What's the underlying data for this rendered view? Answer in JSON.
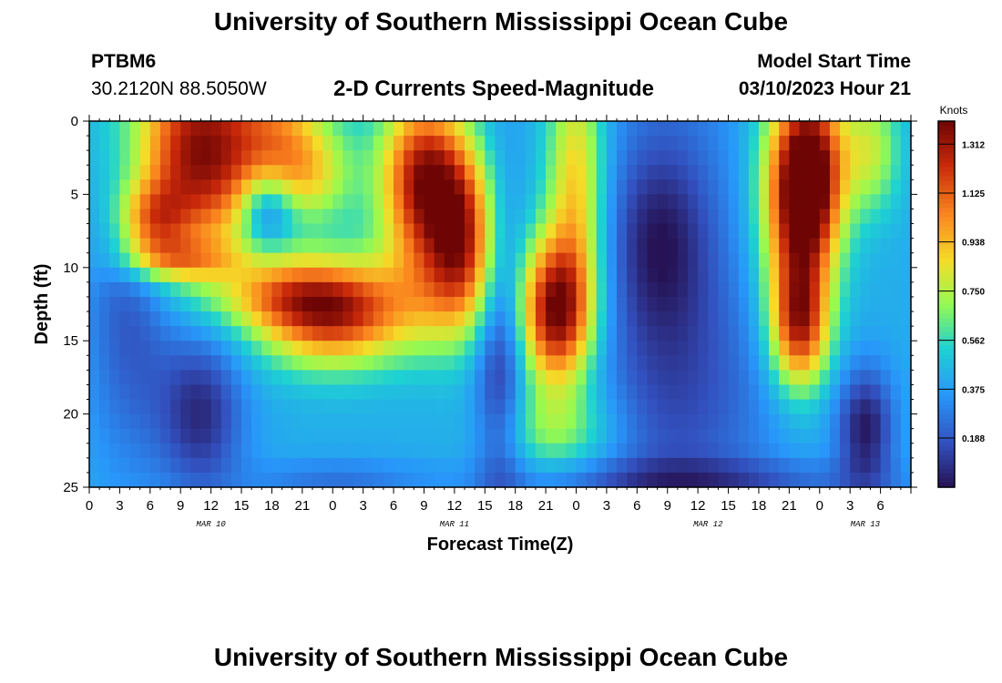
{
  "header": {
    "title": "University of Southern Mississippi Ocean Cube",
    "station_id": "PTBM6",
    "station_coords": "30.2120N  88.5050W",
    "subtitle": "2-D Currents Speed-Magnitude",
    "model_start_label": "Model Start Time",
    "model_start_value": "03/10/2023 Hour 21"
  },
  "footer": {
    "title": "University of Southern Mississippi Ocean Cube"
  },
  "chart_data": {
    "type": "heatmap",
    "title": "2-D Currents Speed-Magnitude",
    "xlabel": "Forecast Time(Z)",
    "ylabel": "Depth (ft)",
    "x_hours_range": [
      0,
      81
    ],
    "x_ticks": [
      "0",
      "3",
      "6",
      "9",
      "12",
      "15",
      "18",
      "21",
      "0",
      "3",
      "6",
      "9",
      "12",
      "15",
      "18",
      "21",
      "0",
      "3",
      "6",
      "9",
      "12",
      "15",
      "18",
      "21",
      "0",
      "3",
      "6"
    ],
    "date_labels": [
      {
        "label": "MAR 10",
        "hour": 12
      },
      {
        "label": "MAR 11",
        "hour": 36
      },
      {
        "label": "MAR 12",
        "hour": 61
      },
      {
        "label": "MAR 13",
        "hour": 76.5
      }
    ],
    "y_range": [
      0,
      25
    ],
    "y_ticks": [
      "0",
      "5",
      "10",
      "15",
      "20",
      "25"
    ],
    "colorbar": {
      "title": "Knots",
      "min": 0.0,
      "max": 1.4,
      "ticks": [
        "1.312",
        "1.125",
        "0.938",
        "0.750",
        "0.562",
        "0.375",
        "0.188"
      ],
      "tick_values": [
        1.312,
        1.125,
        0.938,
        0.75,
        0.562,
        0.375,
        0.188
      ]
    },
    "features": [
      {
        "t": 11,
        "d": 2,
        "st": 5,
        "sd": 5,
        "v": 0.95
      },
      {
        "t": 6,
        "d": 7,
        "st": 2.5,
        "sd": 2,
        "v": 0.55
      },
      {
        "t": 9,
        "d": 9.5,
        "st": 4,
        "sd": 1,
        "v": 0.35
      },
      {
        "t": 4,
        "d": 12,
        "st": 3,
        "sd": 8,
        "v": -0.25
      },
      {
        "t": 11,
        "d": 20,
        "st": 3,
        "sd": 4,
        "v": -0.35
      },
      {
        "t": 18,
        "d": 12,
        "st": 5,
        "sd": 1.5,
        "v": 0.25
      },
      {
        "t": 24,
        "d": 13,
        "st": 5,
        "sd": 2.5,
        "v": 0.85
      },
      {
        "t": 19,
        "d": 3,
        "st": 3,
        "sd": 5,
        "v": 0.35
      },
      {
        "t": 22.5,
        "d": 4,
        "st": 3,
        "sd": 3,
        "v": 0.3
      },
      {
        "t": 17.5,
        "d": 6,
        "st": 2,
        "sd": 2,
        "v": -0.5
      },
      {
        "t": 21,
        "d": 7,
        "st": 3,
        "sd": 2,
        "v": -0.2
      },
      {
        "t": 33,
        "d": 4,
        "st": 3,
        "sd": 4,
        "v": 0.9
      },
      {
        "t": 37,
        "d": 8,
        "st": 2.5,
        "sd": 4,
        "v": 0.7
      },
      {
        "t": 34,
        "d": 12,
        "st": 4,
        "sd": 3,
        "v": 0.25
      },
      {
        "t": 46,
        "d": 13,
        "st": 2.5,
        "sd": 3.5,
        "v": 0.95
      },
      {
        "t": 48,
        "d": 4,
        "st": 2,
        "sd": 6,
        "v": 0.5
      },
      {
        "t": 46,
        "d": 21,
        "st": 4,
        "sd": 2,
        "v": 0.25
      },
      {
        "t": 40.5,
        "d": 15,
        "st": 1.8,
        "sd": 8,
        "v": -0.35
      },
      {
        "t": 56,
        "d": 8,
        "st": 3,
        "sd": 4,
        "v": -0.15
      },
      {
        "t": 57,
        "d": 13,
        "st": 5,
        "sd": 12,
        "v": -0.3
      },
      {
        "t": 64.5,
        "d": 20,
        "st": 4,
        "sd": 6,
        "v": -0.08
      },
      {
        "t": 70,
        "d": 5,
        "st": 2.5,
        "sd": 5,
        "v": 1.05
      },
      {
        "t": 70,
        "d": 14,
        "st": 2,
        "sd": 3,
        "v": 0.75
      },
      {
        "t": 72,
        "d": 3,
        "st": 2,
        "sd": 4,
        "v": 0.4
      },
      {
        "t": 77,
        "d": 2,
        "st": 2,
        "sd": 3,
        "v": 0.35
      },
      {
        "t": 76.5,
        "d": 21,
        "st": 2,
        "sd": 3,
        "v": -0.4
      },
      {
        "t": 60,
        "d": 24.5,
        "st": 14,
        "sd": 1,
        "v": -0.2
      },
      {
        "t": 24,
        "d": 24.5,
        "st": 6,
        "sd": 1,
        "v": -0.15
      }
    ],
    "base_value": 0.42
  }
}
